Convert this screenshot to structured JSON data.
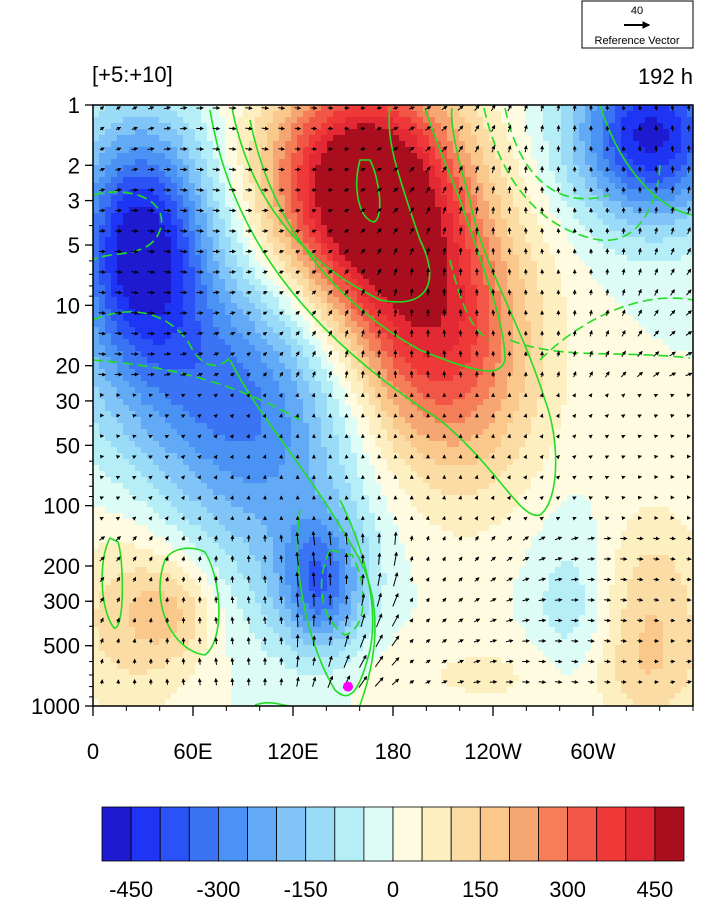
{
  "chart_data": {
    "type": "heatmap",
    "title_left": "[+5:+10]",
    "title_right": "192 h",
    "reference_vector": {
      "value": "40",
      "label": "Reference Vector"
    },
    "x_ticks": [
      "0",
      "60E",
      "120E",
      "180",
      "120W",
      "60W"
    ],
    "y_ticks": [
      "1",
      "2",
      "3",
      "5",
      "10",
      "20",
      "30",
      "50",
      "100",
      "200",
      "300",
      "500",
      "1000"
    ],
    "y_scale": "log",
    "y_reversed": true,
    "x_range_deg_east": [
      0,
      360
    ],
    "y_range": [
      1,
      1000
    ],
    "colorbar_ticks": [
      "-450",
      "-300",
      "-150",
      "0",
      "150",
      "300",
      "450"
    ],
    "colorbar_colors": [
      "#1d1ad0",
      "#1f35f5",
      "#2b52f6",
      "#3a73f4",
      "#4a92f4",
      "#62aaf6",
      "#80c4f8",
      "#9adcf8",
      "#b6eef8",
      "#ddfcf6",
      "#fffbe0",
      "#fdefc0",
      "#fbdca4",
      "#f9c88a",
      "#f5a672",
      "#f57e58",
      "#f25646",
      "#ef3838",
      "#e32a34",
      "#a80e1e"
    ],
    "colorbar_levels": [
      -500,
      -450,
      -400,
      -350,
      -300,
      -250,
      -200,
      -150,
      -100,
      -50,
      0,
      50,
      100,
      150,
      200,
      250,
      300,
      350,
      400,
      450,
      500
    ],
    "marker": {
      "lon": 153,
      "pressure": 800,
      "color": "#ff00ff"
    },
    "grid": false,
    "legend": "none"
  }
}
